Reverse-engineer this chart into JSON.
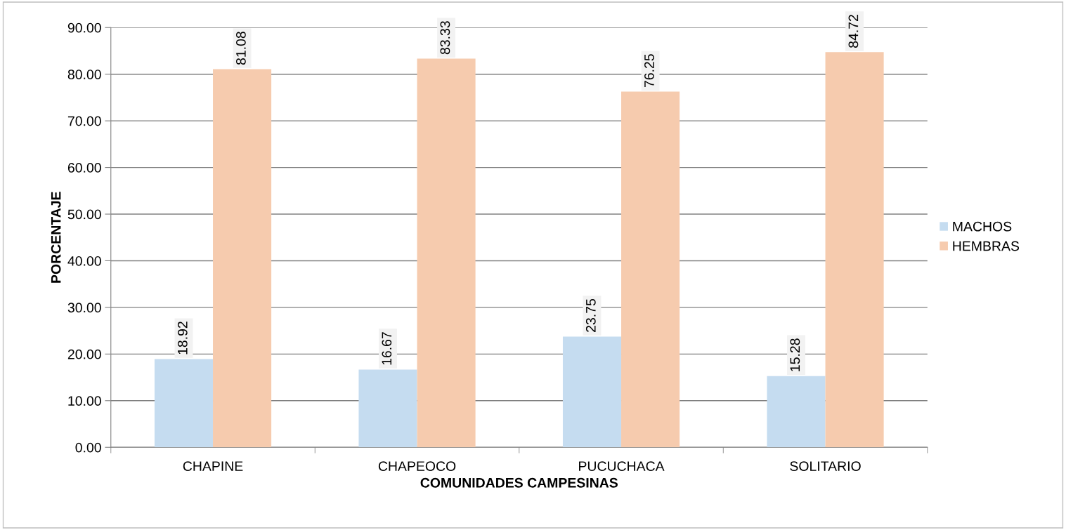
{
  "chart_data": {
    "type": "bar",
    "xlabel": "COMUNIDADES CAMPESINAS",
    "ylabel": "PORCENTAJE",
    "categories": [
      "CHAPINE",
      "CHAPEOCO",
      "PUCUCHACA",
      "SOLITARIO"
    ],
    "series": [
      {
        "name": "MACHOS",
        "color": "#c5dcf0",
        "values": [
          18.92,
          16.67,
          23.75,
          15.28
        ]
      },
      {
        "name": "HEMBRAS",
        "color": "#f6cbae",
        "values": [
          81.08,
          83.33,
          76.25,
          84.72
        ]
      }
    ],
    "ylim": [
      0,
      90
    ],
    "yticks": [
      {
        "value": 0,
        "label": "0.00"
      },
      {
        "value": 10,
        "label": "10.00"
      },
      {
        "value": 20,
        "label": "20.00"
      },
      {
        "value": 30,
        "label": "30.00"
      },
      {
        "value": 40,
        "label": "40.00"
      },
      {
        "value": 50,
        "label": "50.00"
      },
      {
        "value": 60,
        "label": "60.00"
      },
      {
        "value": 70,
        "label": "70.00"
      },
      {
        "value": 80,
        "label": "80.00"
      },
      {
        "value": 90,
        "label": "90.00"
      }
    ],
    "grid": "y",
    "legend": "right",
    "data_labels": true
  }
}
